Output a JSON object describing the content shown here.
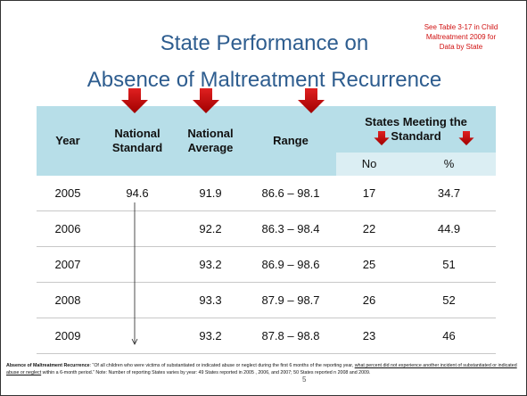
{
  "title_line1": "State Performance on",
  "title_line2": "Absence of Maltreatment Recurrence",
  "note": "See Table 3-17 in Child Maltreatment 2009 for Data by State",
  "table": {
    "headers": [
      "Year",
      "National Standard",
      "National Average",
      "Range",
      "States Meeting the Standard"
    ],
    "subheaders": [
      "No",
      "%"
    ],
    "rows": [
      [
        2005,
        94.6,
        91.9,
        "86.6 – 98.1",
        17,
        34.7
      ],
      [
        2006,
        null,
        92.2,
        "86.3 – 98.4",
        22,
        44.9
      ],
      [
        2007,
        null,
        93.2,
        "86.9 – 98.6",
        25,
        51
      ],
      [
        2008,
        null,
        93.3,
        "87.9 – 98.7",
        26,
        52
      ],
      [
        2009,
        null,
        93.2,
        "87.8 – 98.8",
        23,
        46
      ]
    ]
  },
  "footnote": {
    "term": "Absence of Maltreatment Recurrence",
    "text1": ": “Of all children who were victims of substantiated or indicated abuse or neglect during the first 6 months of the reporting year, ",
    "underlined": "what percent did not experience another incident of substantiated or indicated abuse or neglect",
    "text2": " within a 6-month period.” Note: Number of reporting States varies by year: 49 States reported in 2005 , 2006, and 2007; 50 States reported n 2008 and 2009."
  },
  "page_number": "5"
}
